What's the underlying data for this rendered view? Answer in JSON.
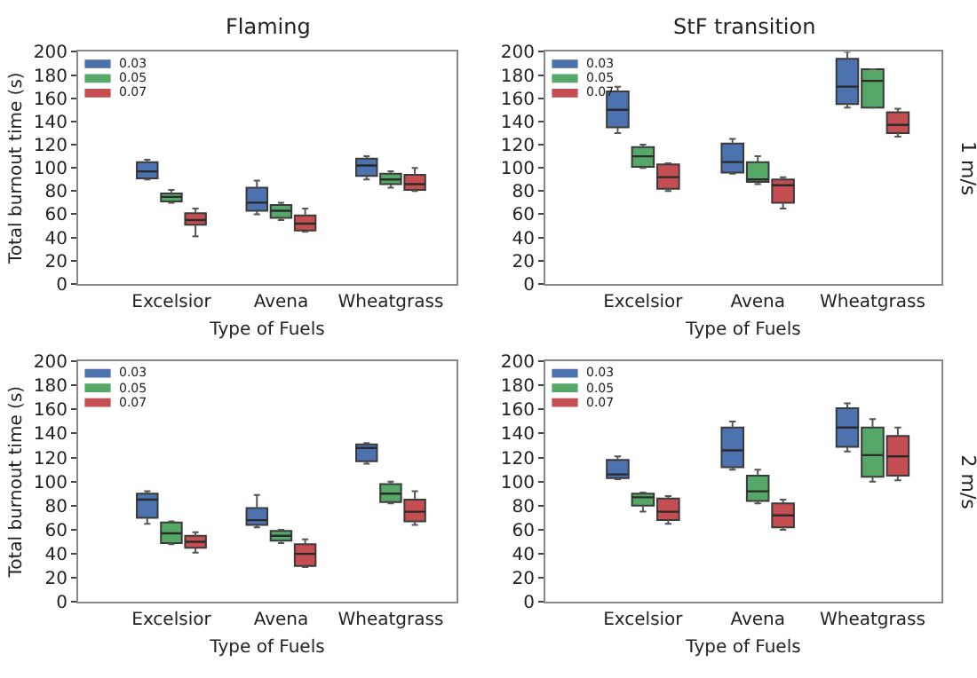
{
  "chart_data": [
    {
      "type": "box",
      "title": "Flaming",
      "xlabel": "Type of Fuels",
      "ylabel": "Total burnout time (s)",
      "categories": [
        "Excelsior",
        "Avena",
        "Wheatgrass"
      ],
      "ylim": [
        0,
        200
      ],
      "yticks": [
        0,
        20,
        40,
        60,
        80,
        100,
        120,
        140,
        160,
        180,
        200
      ],
      "legend": "top left",
      "series": [
        {
          "name": "0.03",
          "color": "#4c72b0",
          "boxes": [
            {
              "low": 90,
              "q1": 91,
              "median": 97,
              "q3": 105,
              "high": 107
            },
            {
              "low": 60,
              "q1": 63,
              "median": 70,
              "q3": 83,
              "high": 89
            },
            {
              "low": 90,
              "q1": 93,
              "median": 102,
              "q3": 108,
              "high": 110
            }
          ]
        },
        {
          "name": "0.05",
          "color": "#55a868",
          "boxes": [
            {
              "low": 70,
              "q1": 71,
              "median": 75,
              "q3": 78,
              "high": 81
            },
            {
              "low": 55,
              "q1": 57,
              "median": 63,
              "q3": 68,
              "high": 70
            },
            {
              "low": 83,
              "q1": 86,
              "median": 90,
              "q3": 95,
              "high": 97
            }
          ]
        },
        {
          "name": "0.07",
          "color": "#c44e52",
          "boxes": [
            {
              "low": 41,
              "q1": 51,
              "median": 55,
              "q3": 61,
              "high": 65
            },
            {
              "low": 45,
              "q1": 46,
              "median": 52,
              "q3": 59,
              "high": 65
            },
            {
              "low": 80,
              "q1": 81,
              "median": 86,
              "q3": 94,
              "high": 100
            }
          ]
        }
      ]
    },
    {
      "type": "box",
      "title": "StF transition",
      "xlabel": "Type of Fuels",
      "categories": [
        "Excelsior",
        "Avena",
        "Wheatgrass"
      ],
      "ylim": [
        0,
        200
      ],
      "yticks": [
        0,
        20,
        40,
        60,
        80,
        100,
        120,
        140,
        160,
        180,
        200
      ],
      "legend": "top left",
      "annotations": [
        "1 m/s"
      ],
      "series": [
        {
          "name": "0.03",
          "color": "#4c72b0",
          "boxes": [
            {
              "low": 130,
              "q1": 135,
              "median": 150,
              "q3": 166,
              "high": 170
            },
            {
              "low": 95,
              "q1": 96,
              "median": 105,
              "q3": 121,
              "high": 125
            },
            {
              "low": 152,
              "q1": 155,
              "median": 170,
              "q3": 194,
              "high": 200
            }
          ]
        },
        {
          "name": "0.05",
          "color": "#55a868",
          "boxes": [
            {
              "low": 100,
              "q1": 101,
              "median": 110,
              "q3": 118,
              "high": 120
            },
            {
              "low": 86,
              "q1": 88,
              "median": 90,
              "q3": 105,
              "high": 110
            },
            {
              "low": 152,
              "q1": 152,
              "median": 175,
              "q3": 185,
              "high": 185
            }
          ]
        },
        {
          "name": "0.07",
          "color": "#c44e52",
          "boxes": [
            {
              "low": 80,
              "q1": 82,
              "median": 92,
              "q3": 103,
              "high": 104
            },
            {
              "low": 65,
              "q1": 70,
              "median": 85,
              "q3": 90,
              "high": 92
            },
            {
              "low": 127,
              "q1": 130,
              "median": 137,
              "q3": 148,
              "high": 151
            }
          ]
        }
      ]
    },
    {
      "type": "box",
      "xlabel": "Type of Fuels",
      "ylabel": "Total burnout time (s)",
      "categories": [
        "Excelsior",
        "Avena",
        "Wheatgrass"
      ],
      "ylim": [
        0,
        200
      ],
      "yticks": [
        0,
        20,
        40,
        60,
        80,
        100,
        120,
        140,
        160,
        180,
        200
      ],
      "legend": "top left",
      "series": [
        {
          "name": "0.03",
          "color": "#4c72b0",
          "boxes": [
            {
              "low": 65,
              "q1": 70,
              "median": 85,
              "q3": 90,
              "high": 92
            },
            {
              "low": 62,
              "q1": 64,
              "median": 68,
              "q3": 78,
              "high": 89
            },
            {
              "low": 115,
              "q1": 117,
              "median": 128,
              "q3": 131,
              "high": 132
            }
          ]
        },
        {
          "name": "0.05",
          "color": "#55a868",
          "boxes": [
            {
              "low": 48,
              "q1": 49,
              "median": 57,
              "q3": 66,
              "high": 67
            },
            {
              "low": 49,
              "q1": 51,
              "median": 55,
              "q3": 59,
              "high": 60
            },
            {
              "low": 82,
              "q1": 83,
              "median": 90,
              "q3": 98,
              "high": 100
            }
          ]
        },
        {
          "name": "0.07",
          "color": "#c44e52",
          "boxes": [
            {
              "low": 41,
              "q1": 45,
              "median": 50,
              "q3": 55,
              "high": 58
            },
            {
              "low": 29,
              "q1": 30,
              "median": 40,
              "q3": 48,
              "high": 52
            },
            {
              "low": 64,
              "q1": 67,
              "median": 75,
              "q3": 85,
              "high": 92
            }
          ]
        }
      ]
    },
    {
      "type": "box",
      "xlabel": "Type of Fuels",
      "categories": [
        "Excelsior",
        "Avena",
        "Wheatgrass"
      ],
      "ylim": [
        0,
        200
      ],
      "yticks": [
        0,
        20,
        40,
        60,
        80,
        100,
        120,
        140,
        160,
        180,
        200
      ],
      "legend": "top left",
      "annotations": [
        "2 m/s"
      ],
      "series": [
        {
          "name": "0.03",
          "color": "#4c72b0",
          "boxes": [
            {
              "low": 102,
              "q1": 103,
              "median": 106,
              "q3": 118,
              "high": 121
            },
            {
              "low": 110,
              "q1": 112,
              "median": 126,
              "q3": 145,
              "high": 150
            },
            {
              "low": 125,
              "q1": 129,
              "median": 145,
              "q3": 161,
              "high": 165
            }
          ]
        },
        {
          "name": "0.05",
          "color": "#55a868",
          "boxes": [
            {
              "low": 75,
              "q1": 80,
              "median": 87,
              "q3": 90,
              "high": 91
            },
            {
              "low": 82,
              "q1": 84,
              "median": 92,
              "q3": 105,
              "high": 110
            },
            {
              "low": 100,
              "q1": 104,
              "median": 122,
              "q3": 145,
              "high": 152
            }
          ]
        },
        {
          "name": "0.07",
          "color": "#c44e52",
          "boxes": [
            {
              "low": 65,
              "q1": 68,
              "median": 75,
              "q3": 86,
              "high": 88
            },
            {
              "low": 60,
              "q1": 62,
              "median": 72,
              "q3": 82,
              "high": 85
            },
            {
              "low": 101,
              "q1": 105,
              "median": 121,
              "q3": 138,
              "high": 145
            }
          ]
        }
      ]
    }
  ]
}
